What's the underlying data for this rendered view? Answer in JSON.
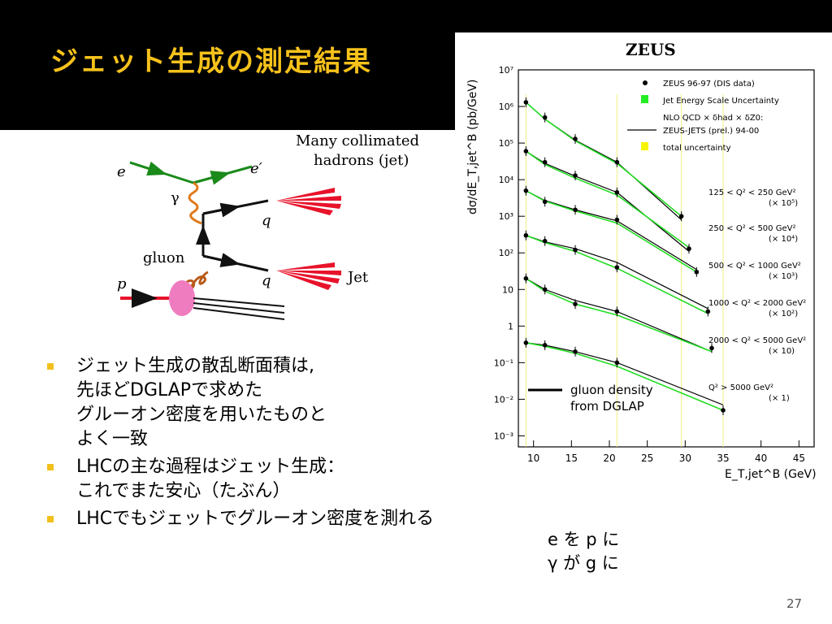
{
  "slide": {
    "title": "ジェット生成の測定結果",
    "page_number": "27"
  },
  "diagram": {
    "label_e": "e",
    "label_e_prime": "e′",
    "label_gamma": "γ",
    "label_q1": "q",
    "label_q2": "q",
    "label_gluon": "gluon",
    "label_p": "p",
    "label_jet": "Jet",
    "caption_line1": "Many collimated",
    "caption_line2": "hadrons (jet)"
  },
  "bullets": [
    {
      "lines": [
        "ジェット生成の散乱断面積は,",
        "先ほどDGLAPで求めた",
        "グルーオン密度を用いたものと",
        "よく一致"
      ]
    },
    {
      "lines": [
        "LHCの主な過程はジェット生成：",
        "これでまた安心（たぶん）"
      ]
    },
    {
      "lines": [
        "LHCでもジェットでグルーオン密度を測れる"
      ]
    }
  ],
  "side_note": {
    "line1": "e を p に",
    "line2": "γ が g に"
  },
  "chart_data": {
    "type": "scatter",
    "title": "ZEUS",
    "xlabel": "E_T,jet^B (GeV)",
    "ylabel": "dσ/dE_T,jet^B (pb/GeV)",
    "xlim": [
      8,
      47
    ],
    "ylim": [
      0.0005,
      10000000
    ],
    "ylog": true,
    "x_ticks": [
      10,
      15,
      20,
      25,
      30,
      35,
      40,
      45
    ],
    "y_tick_labels": [
      "10⁷",
      "10⁶",
      "10⁵",
      "10⁴",
      "10³",
      "10²",
      "10",
      "1",
      "10⁻¹",
      "10⁻²",
      "10⁻³"
    ],
    "legend": [
      {
        "label": "ZEUS 96-97 (DIS data)",
        "marker": "dot",
        "color": "#000000"
      },
      {
        "label": "Jet Energy Scale Uncertainty",
        "marker": "box",
        "color": "#22ee22"
      },
      {
        "label": "NLO QCD × δhad × δZ0:",
        "marker": "none",
        "color": "#000000"
      },
      {
        "label": "ZEUS-JETS (prel.) 94-00",
        "marker": "line",
        "color": "#000000"
      },
      {
        "label": "total uncertainty",
        "marker": "box",
        "color": "#f5f500"
      }
    ],
    "inline_legend": "gluon density from DGLAP",
    "series": [
      {
        "name": "125 < Q² < 250 GeV²",
        "scale": "(× 10⁵)",
        "x": [
          9,
          11.5,
          15.5,
          21,
          29.5
        ],
        "y": [
          1300000,
          500000,
          130000,
          30000,
          1000
        ],
        "model": [
          1300000,
          450000,
          120000,
          30000,
          800
        ],
        "green": [
          1300000,
          450000,
          115000,
          28000,
          1000
        ]
      },
      {
        "name": "250 < Q² < 500 GeV²",
        "scale": "(× 10⁴)",
        "x": [
          9,
          11.5,
          15.5,
          21,
          30.5
        ],
        "y": [
          60000,
          30000,
          13000,
          4500,
          130
        ],
        "model": [
          60000,
          28000,
          12500,
          4500,
          110
        ],
        "green": [
          60000,
          26000,
          11000,
          3800,
          140
        ]
      },
      {
        "name": "500 < Q² < 1000 GeV²",
        "scale": "(× 10³)",
        "x": [
          9,
          11.5,
          15.5,
          21,
          31.5
        ],
        "y": [
          5000,
          2500,
          1500,
          800,
          30
        ],
        "model": [
          5000,
          2700,
          1500,
          750,
          35
        ],
        "green": [
          5000,
          2600,
          1400,
          650,
          30
        ]
      },
      {
        "name": "1000 < Q² < 2000 GeV²",
        "scale": "(× 10²)",
        "x": [
          9,
          11.5,
          15.5,
          21,
          33
        ],
        "y": [
          300,
          210,
          120,
          40,
          2.5
        ],
        "model": [
          300,
          200,
          130,
          55,
          3
        ],
        "green": [
          300,
          190,
          110,
          38,
          2.2
        ]
      },
      {
        "name": "2000 < Q² < 5000 GeV²",
        "scale": "(× 10)",
        "x": [
          9,
          11.5,
          15.5,
          21,
          33.5
        ],
        "y": [
          20,
          10,
          4,
          2.5,
          0.25
        ],
        "model": [
          20,
          10,
          5,
          2.5,
          0.2
        ],
        "green": [
          20,
          9,
          4,
          2,
          0.2
        ]
      },
      {
        "name": "Q² > 5000 GeV²",
        "scale": "(× 1)",
        "x": [
          9,
          11.5,
          15.5,
          21,
          35
        ],
        "y": [
          0.35,
          0.3,
          0.2,
          0.1,
          0.005
        ],
        "model": [
          0.35,
          0.3,
          0.2,
          0.1,
          0.007
        ],
        "green": [
          0.35,
          0.28,
          0.18,
          0.08,
          0.005
        ]
      }
    ]
  }
}
